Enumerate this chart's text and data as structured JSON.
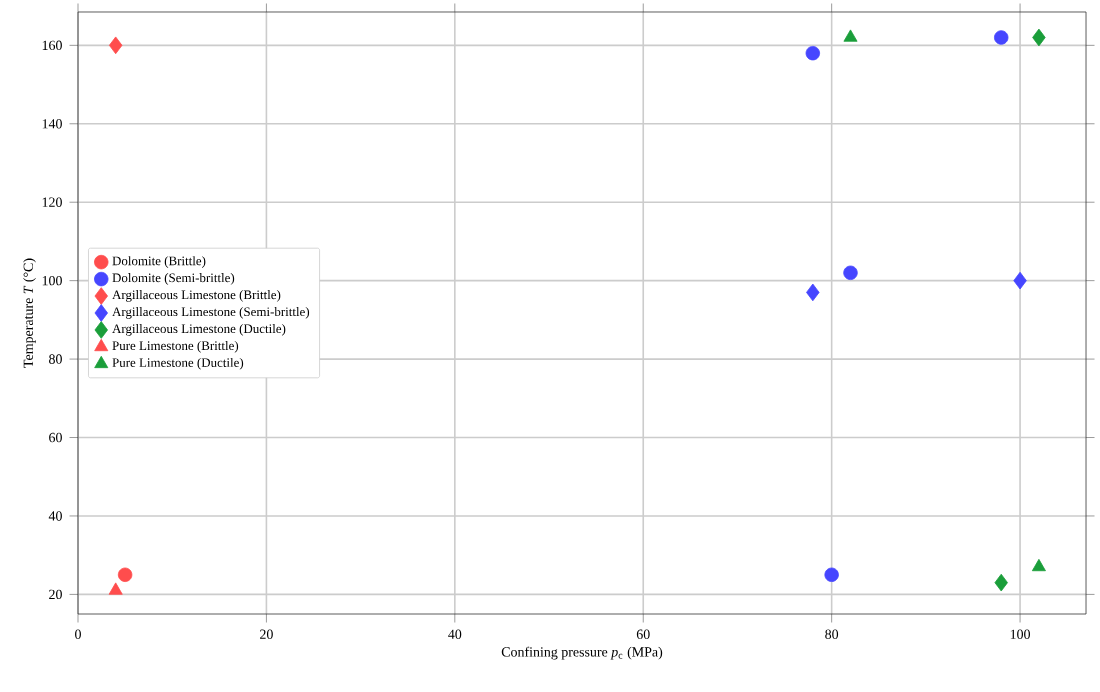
{
  "chart_data": {
    "type": "scatter",
    "xlabel": "Confining pressure *p*$_{c}$ (MPa)",
    "ylabel": "Temperature *T* (°C)",
    "xlim": [
      0,
      107
    ],
    "ylim": [
      15,
      168.5
    ],
    "xticks": [
      0,
      20,
      40,
      60,
      80,
      100
    ],
    "yticks": [
      20,
      40,
      60,
      80,
      100,
      120,
      140,
      160
    ],
    "grid": true,
    "legend": "left",
    "series": [
      {
        "name": "Dolomite (Brittle)",
        "color": "#ff4d4d",
        "marker": "circle",
        "x": [
          5
        ],
        "values": [
          25
        ]
      },
      {
        "name": "Dolomite (Semi-brittle)",
        "color": "#4646ff",
        "marker": "circle",
        "x": [
          78,
          98,
          82,
          80
        ],
        "values": [
          158,
          162,
          102,
          25
        ]
      },
      {
        "name": "Argillaceous Limestone (Brittle)",
        "color": "#ff4d4d",
        "marker": "diamond",
        "x": [
          4
        ],
        "values": [
          160
        ]
      },
      {
        "name": "Argillaceous Limestone (Semi-brittle)",
        "color": "#4646ff",
        "marker": "diamond",
        "x": [
          78,
          100
        ],
        "values": [
          97,
          100
        ]
      },
      {
        "name": "Argillaceous Limestone (Ductile)",
        "color": "#1a9e3a",
        "marker": "diamond",
        "x": [
          102,
          98
        ],
        "values": [
          162,
          23
        ]
      },
      {
        "name": "Pure Limestone (Brittle)",
        "color": "#ff4d4d",
        "marker": "triangle",
        "x": [
          4
        ],
        "values": [
          21
        ]
      },
      {
        "name": "Pure Limestone (Ductile)",
        "color": "#1a9e3a",
        "marker": "triangle",
        "x": [
          82,
          102
        ],
        "values": [
          162,
          27
        ]
      }
    ]
  }
}
